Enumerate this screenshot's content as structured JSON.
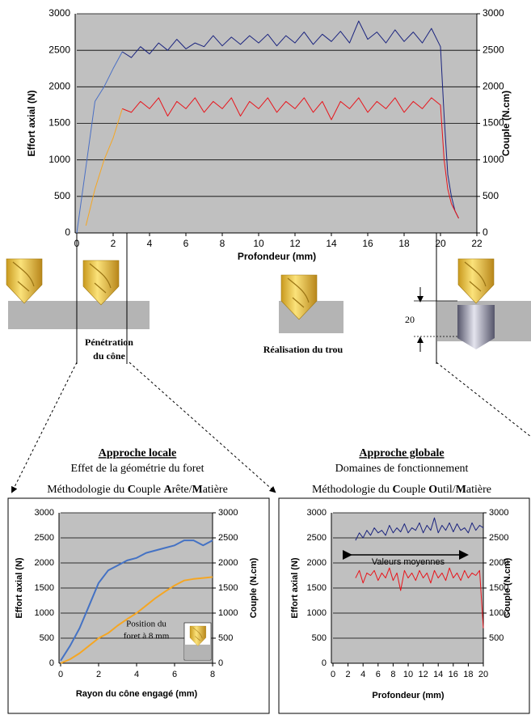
{
  "chart_data": [
    {
      "type": "line",
      "x_label": "Profondeur (mm)",
      "y_label": "Effort axial (N)",
      "y2_label": "Couple (N.cm)",
      "x": [
        0,
        0.5,
        1,
        1.5,
        2,
        2.5,
        3,
        3.5,
        4,
        4.5,
        5,
        5.5,
        6,
        6.5,
        7,
        7.5,
        8,
        8.5,
        9,
        9.5,
        10,
        10.5,
        11,
        11.5,
        12,
        12.5,
        13,
        13.5,
        14,
        14.5,
        15,
        15.5,
        16,
        16.5,
        17,
        17.5,
        18,
        18.5,
        19,
        19.5,
        20,
        20.2,
        20.4,
        20.6,
        20.8,
        21
      ],
      "series": [
        {
          "color": "#4a6fc4",
          "values": [
            0,
            900,
            1800,
            2000,
            2250,
            2480,
            null,
            null,
            null,
            null,
            null,
            null,
            null,
            null,
            null,
            null,
            null,
            null,
            null,
            null,
            null,
            null,
            null,
            null,
            null,
            null,
            null,
            null,
            null,
            null,
            null,
            null,
            null,
            null,
            null,
            null,
            null,
            null,
            null,
            null,
            null,
            null,
            null,
            null,
            null,
            null
          ]
        },
        {
          "color": "#1a237e",
          "values": [
            null,
            null,
            null,
            null,
            null,
            2480,
            2400,
            2550,
            2450,
            2600,
            2500,
            2650,
            2520,
            2600,
            2550,
            2700,
            2560,
            2680,
            2580,
            2700,
            2600,
            2720,
            2560,
            2700,
            2600,
            2750,
            2580,
            2720,
            2620,
            2760,
            2600,
            2900,
            2650,
            2750,
            2600,
            2780,
            2620,
            2750,
            2600,
            2800,
            2550,
            1600,
            800,
            500,
            300,
            200
          ]
        },
        {
          "color": "#f5a623",
          "axis": "y2",
          "values": [
            null,
            100,
            600,
            1000,
            1300,
            1700,
            null,
            null,
            null,
            null,
            null,
            null,
            null,
            null,
            null,
            null,
            null,
            null,
            null,
            null,
            null,
            null,
            null,
            null,
            null,
            null,
            null,
            null,
            null,
            null,
            null,
            null,
            null,
            null,
            null,
            null,
            null,
            null,
            null,
            null,
            null,
            null,
            null,
            null,
            null,
            null
          ]
        },
        {
          "color": "#e8141b",
          "axis": "y2",
          "values": [
            null,
            null,
            null,
            null,
            null,
            1700,
            1650,
            1800,
            1700,
            1850,
            1600,
            1800,
            1700,
            1850,
            1650,
            1800,
            1700,
            1850,
            1600,
            1800,
            1700,
            1850,
            1650,
            1800,
            1700,
            1850,
            1650,
            1800,
            1550,
            1800,
            1700,
            1850,
            1650,
            1800,
            1700,
            1850,
            1650,
            1800,
            1700,
            1850,
            1750,
            1000,
            600,
            400,
            300,
            200
          ]
        }
      ],
      "xlim": [
        0,
        22
      ],
      "xticks": [
        0,
        2,
        4,
        6,
        8,
        10,
        12,
        14,
        16,
        18,
        20,
        22
      ],
      "ylim": [
        0,
        3000
      ],
      "yticks": [
        0,
        500,
        1000,
        1500,
        2000,
        2500,
        3000
      ],
      "y2lim": [
        0,
        3000
      ],
      "y2ticks": [
        0,
        500,
        1000,
        1500,
        2000,
        2500,
        3000
      ],
      "grid": true,
      "annotations": {
        "penetration": [
          "Pénétration",
          "du cône"
        ],
        "realisation": "Réalisation du trou",
        "depth": "20"
      }
    },
    {
      "type": "line",
      "x_label": "Rayon du cône engagé (mm)",
      "y_label": "Effort axial (N)",
      "y2_label": "Couple (N.cm)",
      "x": [
        0,
        0.5,
        1,
        1.5,
        2,
        2.5,
        3,
        3.5,
        4,
        4.5,
        5,
        5.5,
        6,
        6.5,
        7,
        7.5,
        8
      ],
      "series": [
        {
          "color": "#4472c4",
          "values": [
            50,
            350,
            700,
            1150,
            1600,
            1850,
            1950,
            2050,
            2100,
            2200,
            2250,
            2300,
            2350,
            2450,
            2450,
            2350,
            2450
          ]
        },
        {
          "color": "#f5a623",
          "axis": "y2",
          "values": [
            0,
            80,
            200,
            350,
            500,
            600,
            750,
            880,
            1000,
            1150,
            1300,
            1430,
            1550,
            1650,
            1680,
            1700,
            1720
          ]
        }
      ],
      "xlim": [
        0,
        8
      ],
      "xticks": [
        0,
        2,
        4,
        6,
        8
      ],
      "ylim": [
        0,
        3000
      ],
      "yticks": [
        0,
        500,
        1000,
        1500,
        2000,
        2500,
        3000
      ],
      "y2lim": [
        0,
        3000
      ],
      "y2ticks": [
        0,
        500,
        1000,
        1500,
        2000,
        2500,
        3000
      ],
      "grid": true,
      "annotations": {
        "position": [
          "Position du",
          "foret à 8 mm"
        ],
        "radius": "8"
      }
    },
    {
      "type": "line",
      "x_label": "Profondeur (mm)",
      "y_label": "Effort axial (N)",
      "y2_label": "Couple (N.cm)",
      "x": [
        3,
        3.5,
        4,
        4.5,
        5,
        5.5,
        6,
        6.5,
        7,
        7.5,
        8,
        8.5,
        9,
        9.5,
        10,
        10.5,
        11,
        11.5,
        12,
        12.5,
        13,
        13.5,
        14,
        14.5,
        15,
        15.5,
        16,
        16.5,
        17,
        17.5,
        18,
        18.5,
        19,
        19.5,
        20
      ],
      "series": [
        {
          "color": "#1a237e",
          "values": [
            2450,
            2600,
            2500,
            2650,
            2550,
            2700,
            2600,
            2650,
            2550,
            2750,
            2600,
            2700,
            2620,
            2780,
            2600,
            2700,
            2650,
            2800,
            2600,
            2750,
            2650,
            2900,
            2600,
            2750,
            2650,
            2800,
            2620,
            2780,
            2650,
            2700,
            2600,
            2800,
            2650,
            2750,
            2700
          ]
        },
        {
          "color": "#e8141b",
          "axis": "y2",
          "values": [
            1700,
            1850,
            1600,
            1800,
            1750,
            1850,
            1650,
            1800,
            1700,
            1900,
            1650,
            1800,
            1450,
            1850,
            1700,
            1800,
            1650,
            1850,
            1700,
            1800,
            1600,
            1850,
            1700,
            1800,
            1650,
            1900,
            1700,
            1800,
            1650,
            1850,
            1700,
            1800,
            1750,
            1850,
            700
          ]
        }
      ],
      "xlim": [
        0,
        20
      ],
      "xticks": [
        0,
        2,
        4,
        6,
        8,
        10,
        12,
        14,
        16,
        18,
        20
      ],
      "ylim": [
        0,
        3000
      ],
      "yticks": [
        0,
        500,
        1000,
        1500,
        2000,
        2500,
        3000
      ],
      "y2lim": [
        0,
        3000
      ],
      "y2ticks": [
        500,
        1000,
        1500,
        2000,
        2500,
        3000
      ],
      "grid": true,
      "annotations": {
        "mean": "Valeurs moyennes"
      }
    }
  ],
  "sections": [
    {
      "title": "Approche locale",
      "subtitle": "Effet de la géométrie du foret",
      "method": [
        "Méthodologie du ",
        "C",
        "ouple ",
        "A",
        "rête/",
        "M",
        "atière"
      ]
    },
    {
      "title": "Approche globale",
      "subtitle": "Domaines de fonctionnement",
      "method": [
        "Méthodologie du ",
        "C",
        "ouple ",
        "O",
        "util/",
        "M",
        "atière"
      ]
    }
  ]
}
